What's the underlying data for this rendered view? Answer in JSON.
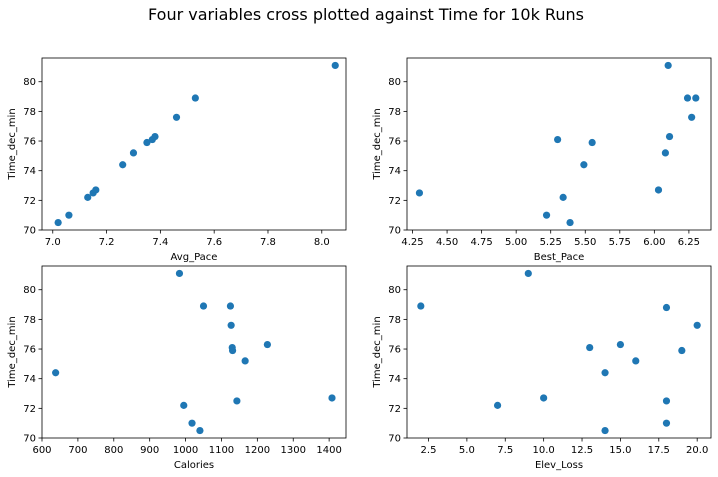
{
  "chart_data": {
    "suptitle": "Four variables cross plotted against Time for 10k Runs",
    "marker_color": "#1f77b4",
    "subplots": [
      {
        "type": "scatter",
        "xlabel": "Avg_Pace",
        "ylabel": "Time_dec_min",
        "xlim": [
          6.96,
          8.09
        ],
        "ylim": [
          70.0,
          81.6
        ],
        "xticks": [
          "7.0",
          "7.2",
          "7.4",
          "7.6",
          "7.8",
          "8.0"
        ],
        "yticks": [
          "70",
          "72",
          "74",
          "76",
          "78",
          "80"
        ],
        "points": [
          {
            "x": 7.02,
            "y": 70.5
          },
          {
            "x": 7.06,
            "y": 71.0
          },
          {
            "x": 7.13,
            "y": 72.2
          },
          {
            "x": 7.15,
            "y": 72.5
          },
          {
            "x": 7.16,
            "y": 72.7
          },
          {
            "x": 7.26,
            "y": 74.4
          },
          {
            "x": 7.3,
            "y": 75.2
          },
          {
            "x": 7.35,
            "y": 75.9
          },
          {
            "x": 7.37,
            "y": 76.1
          },
          {
            "x": 7.38,
            "y": 76.3
          },
          {
            "x": 7.46,
            "y": 77.6
          },
          {
            "x": 7.53,
            "y": 78.9
          },
          {
            "x": 8.05,
            "y": 81.1
          }
        ]
      },
      {
        "type": "scatter",
        "xlabel": "Best_Pace",
        "ylabel": "Time_dec_min",
        "xlim": [
          4.21,
          6.41
        ],
        "ylim": [
          70.0,
          81.6
        ],
        "xticks": [
          "4.25",
          "4.50",
          "4.75",
          "5.00",
          "5.25",
          "5.50",
          "5.75",
          "6.00",
          "6.25"
        ],
        "yticks": [
          "70",
          "72",
          "74",
          "76",
          "78",
          "80"
        ],
        "points": [
          {
            "x": 4.3,
            "y": 72.5
          },
          {
            "x": 5.22,
            "y": 71.0
          },
          {
            "x": 5.3,
            "y": 76.1
          },
          {
            "x": 5.34,
            "y": 72.2
          },
          {
            "x": 5.39,
            "y": 70.5
          },
          {
            "x": 5.49,
            "y": 74.4
          },
          {
            "x": 5.55,
            "y": 75.9
          },
          {
            "x": 6.03,
            "y": 72.7
          },
          {
            "x": 6.08,
            "y": 75.2
          },
          {
            "x": 6.1,
            "y": 81.1
          },
          {
            "x": 6.11,
            "y": 76.3
          },
          {
            "x": 6.24,
            "y": 78.9
          },
          {
            "x": 6.27,
            "y": 77.6
          },
          {
            "x": 6.3,
            "y": 78.9
          }
        ]
      },
      {
        "type": "scatter",
        "xlabel": "Calories",
        "ylabel": "Time_dec_min",
        "xlim": [
          600,
          1447
        ],
        "ylim": [
          70.0,
          81.6
        ],
        "xticks": [
          "600",
          "700",
          "800",
          "900",
          "1000",
          "1100",
          "1200",
          "1300",
          "1400"
        ],
        "yticks": [
          "70",
          "72",
          "74",
          "76",
          "78",
          "80"
        ],
        "points": [
          {
            "x": 638,
            "y": 74.4
          },
          {
            "x": 983,
            "y": 81.1
          },
          {
            "x": 995,
            "y": 72.2
          },
          {
            "x": 1018,
            "y": 71.0
          },
          {
            "x": 1040,
            "y": 70.5
          },
          {
            "x": 1050,
            "y": 78.9
          },
          {
            "x": 1125,
            "y": 78.9
          },
          {
            "x": 1127,
            "y": 77.6
          },
          {
            "x": 1130,
            "y": 76.1
          },
          {
            "x": 1131,
            "y": 75.9
          },
          {
            "x": 1143,
            "y": 72.5
          },
          {
            "x": 1166,
            "y": 75.2
          },
          {
            "x": 1228,
            "y": 76.3
          },
          {
            "x": 1408,
            "y": 72.7
          }
        ]
      },
      {
        "type": "scatter",
        "xlabel": "Elev_Loss",
        "ylabel": "Time_dec_min",
        "xlim": [
          1.1,
          20.9
        ],
        "ylim": [
          70.0,
          81.6
        ],
        "xticks": [
          "2.5",
          "5.0",
          "7.5",
          "10.0",
          "12.5",
          "15.0",
          "17.5",
          "20.0"
        ],
        "yticks": [
          "70",
          "72",
          "74",
          "76",
          "78",
          "80"
        ],
        "points": [
          {
            "x": 2.0,
            "y": 78.9
          },
          {
            "x": 7.0,
            "y": 72.2
          },
          {
            "x": 9.0,
            "y": 81.1
          },
          {
            "x": 10.0,
            "y": 72.7
          },
          {
            "x": 13.0,
            "y": 76.1
          },
          {
            "x": 14.0,
            "y": 74.4
          },
          {
            "x": 14.0,
            "y": 70.5
          },
          {
            "x": 15.0,
            "y": 76.3
          },
          {
            "x": 16.0,
            "y": 75.2
          },
          {
            "x": 18.0,
            "y": 78.8
          },
          {
            "x": 18.0,
            "y": 72.5
          },
          {
            "x": 18.0,
            "y": 71.0
          },
          {
            "x": 19.0,
            "y": 75.9
          },
          {
            "x": 20.0,
            "y": 77.6
          }
        ]
      }
    ]
  }
}
